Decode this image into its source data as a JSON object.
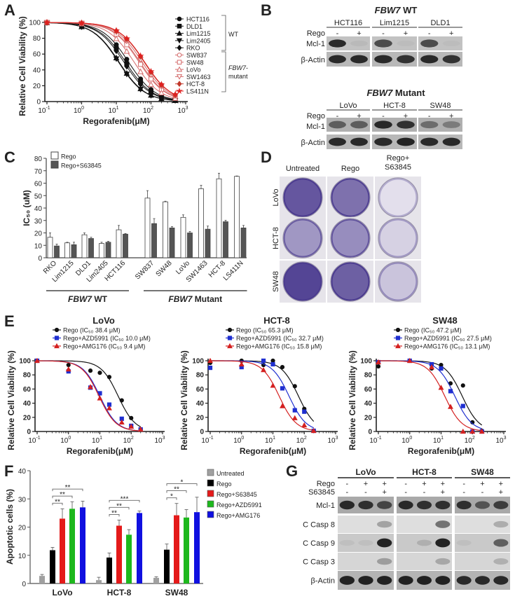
{
  "panel_labels": [
    "A",
    "B",
    "C",
    "D",
    "E",
    "F",
    "G"
  ],
  "chart_data": [
    {
      "id": "A",
      "type": "line",
      "xlabel": "Regorafenib(μM)",
      "ylabel": "Relative Cell Viability (%)",
      "x_scale": "log",
      "xlim": [
        0.1,
        1000
      ],
      "ylim": [
        0,
        100
      ],
      "x_ticks": [
        0.1,
        1,
        10,
        100,
        1000
      ],
      "y_ticks": [
        0,
        20,
        40,
        60,
        80,
        100
      ],
      "doses": [
        0.1,
        1,
        10,
        20,
        50,
        100,
        200,
        500
      ],
      "legend_position": "right",
      "groups": [
        {
          "name": "WT"
        },
        {
          "name_italic": "FBW7",
          "name_rest": "-",
          "name_line2": "mutant"
        }
      ],
      "series": [
        {
          "name": "HCT116",
          "group": 0,
          "ic50": 22.5,
          "color": "#111111",
          "marker": "circle",
          "filled": true
        },
        {
          "name": "DLD1",
          "group": 0,
          "ic50": 18.5,
          "color": "#111111",
          "marker": "square",
          "filled": true
        },
        {
          "name": "Lim1215",
          "group": 0,
          "ic50": 12,
          "color": "#111111",
          "marker": "triangle",
          "filled": true
        },
        {
          "name": "Lim2405",
          "group": 0,
          "ic50": 11.5,
          "color": "#111111",
          "marker": "triangle-down",
          "filled": true
        },
        {
          "name": "RKO",
          "group": 0,
          "ic50": 16.5,
          "color": "#111111",
          "marker": "diamond",
          "filled": true
        },
        {
          "name": "SW837",
          "group": 1,
          "ic50": 48,
          "color": "#d46a6a",
          "marker": "circle",
          "filled": false
        },
        {
          "name": "SW48",
          "group": 1,
          "ic50": 45,
          "color": "#d46a6a",
          "marker": "square",
          "filled": false
        },
        {
          "name": "LoVo",
          "group": 1,
          "ic50": 32.5,
          "color": "#d46a6a",
          "marker": "triangle",
          "filled": false
        },
        {
          "name": "SW1463",
          "group": 1,
          "ic50": 55.5,
          "color": "#d46a6a",
          "marker": "triangle-down",
          "filled": false
        },
        {
          "name": "HCT-8",
          "group": 1,
          "ic50": 63.5,
          "color": "#c0392b",
          "marker": "diamond",
          "filled": true
        },
        {
          "name": "LS411N",
          "group": 1,
          "ic50": 65.5,
          "color": "#e02020",
          "marker": "star",
          "filled": true
        }
      ]
    },
    {
      "id": "C",
      "type": "bar",
      "ylabel": "IC₅₀ (uM)",
      "ylim": [
        0,
        80
      ],
      "y_ticks": [
        0,
        10,
        20,
        30,
        40,
        50,
        60,
        70,
        80
      ],
      "categories": [
        "RKO",
        "Lim1215",
        "DLD1",
        "Lim2405",
        "HCT116",
        "SW837",
        "SW48",
        "LoVo",
        "SW1463",
        "HCT-8",
        "LS411N"
      ],
      "category_groups": [
        {
          "label_italic": "FBW7",
          "label_rest": " WT",
          "from": 0,
          "to": 4
        },
        {
          "label_italic": "FBW7",
          "label_rest": " Mutant",
          "from": 5,
          "to": 10
        }
      ],
      "legend_position": "top-left",
      "series": [
        {
          "name": "Rego",
          "color": "#ffffff",
          "values": [
            16.5,
            12,
            18.5,
            11.5,
            22.5,
            48,
            45,
            32.5,
            55.5,
            63.5,
            65.5
          ],
          "errors": [
            3.5,
            0.5,
            1.5,
            1,
            3.5,
            6,
            0.5,
            2,
            2.8,
            4.5,
            0.3
          ]
        },
        {
          "name": "Rego+S63845",
          "color": "#555555",
          "values": [
            9.5,
            10.5,
            15.5,
            12.5,
            19,
            27.5,
            24,
            20,
            23,
            29,
            24
          ],
          "errors": [
            1.5,
            2,
            1,
            0.7,
            0.5,
            4,
            1,
            1.2,
            2.5,
            1.2,
            2
          ]
        }
      ]
    },
    {
      "id": "E-LoVo",
      "type": "line",
      "title": "LoVo",
      "xlabel": "Regorafenib(μM)",
      "ylabel": "Relative Cell Viability (%)",
      "x_scale": "log",
      "xlim": [
        0.1,
        1000
      ],
      "ylim": [
        0,
        100
      ],
      "x_ticks": [
        0.1,
        1,
        10,
        100,
        1000
      ],
      "y_ticks": [
        0,
        20,
        40,
        60,
        80,
        100
      ],
      "x": [
        0.1,
        1,
        5,
        10,
        20,
        50,
        100,
        200
      ],
      "legend_position": "top",
      "series": [
        {
          "name": "Rego (IC₅₀ 38.4 μM)",
          "ic50": 38.4,
          "color": "#111111",
          "marker": "circle",
          "values": [
            100,
            94,
            86,
            83,
            77,
            44,
            19,
            3
          ]
        },
        {
          "name": "Rego+AZD5991 (IC₅₀ 10.0 μM)",
          "ic50": 10.0,
          "color": "#1f2fd0",
          "marker": "square",
          "values": [
            100,
            85,
            62,
            54,
            38,
            18,
            8,
            3
          ]
        },
        {
          "name": "Rego+AMG176 (IC₅₀ 9.4 μM)",
          "ic50": 9.4,
          "color": "#d42020",
          "marker": "triangle",
          "values": [
            100,
            88,
            63,
            47,
            33,
            13,
            7,
            3
          ]
        }
      ]
    },
    {
      "id": "E-HCT-8",
      "type": "line",
      "title": "HCT-8",
      "xlabel": "Regorafenib(μM)",
      "ylabel": "Relative Cell Viability (%)",
      "x_scale": "log",
      "xlim": [
        0.1,
        1000
      ],
      "ylim": [
        0,
        100
      ],
      "x_ticks": [
        0.1,
        1,
        10,
        100,
        1000
      ],
      "y_ticks": [
        0,
        20,
        40,
        60,
        80,
        100
      ],
      "x": [
        0.1,
        1,
        5,
        10,
        20,
        50,
        100,
        200
      ],
      "legend_position": "top",
      "series": [
        {
          "name": "Rego (IC₅₀ 65.3 μM)",
          "ic50": 65.3,
          "color": "#111111",
          "marker": "circle",
          "values": [
            97,
            100,
            94,
            100,
            91,
            64,
            32,
            1
          ]
        },
        {
          "name": "Rego+AZD5991 (IC₅₀ 32.7 μM)",
          "ic50": 32.7,
          "color": "#1f2fd0",
          "marker": "square",
          "values": [
            90,
            91,
            100,
            95,
            61,
            30,
            28,
            1
          ]
        },
        {
          "name": "Rego+AMG176 (IC₅₀ 15.8 μM)",
          "ic50": 15.8,
          "color": "#d42020",
          "marker": "triangle",
          "values": [
            100,
            95,
            87,
            65,
            36,
            19,
            9,
            1
          ]
        }
      ]
    },
    {
      "id": "E-SW48",
      "type": "line",
      "title": "SW48",
      "xlabel": "Regorafenib(μM)",
      "ylabel": "Relative Cell Viability (%)",
      "x_scale": "log",
      "xlim": [
        0.1,
        1000
      ],
      "ylim": [
        0,
        100
      ],
      "x_ticks": [
        0.1,
        1,
        10,
        100,
        1000
      ],
      "y_ticks": [
        0,
        20,
        40,
        60,
        80,
        100
      ],
      "x": [
        0.1,
        1,
        5,
        10,
        20,
        50,
        100,
        200
      ],
      "legend_position": "top",
      "series": [
        {
          "name": "Rego (IC₅₀ 47.2 μM)",
          "ic50": 47.2,
          "color": "#111111",
          "marker": "circle",
          "values": [
            92,
            100,
            89,
            94,
            68,
            65,
            13,
            1
          ]
        },
        {
          "name": "Rego+AZD5991 (IC₅₀ 27.5 μM)",
          "ic50": 27.5,
          "color": "#1f2fd0",
          "marker": "square",
          "values": [
            98,
            100,
            95,
            89,
            57,
            36,
            0,
            0
          ]
        },
        {
          "name": "Rego+AMG176 (IC₅₀ 13.1  μM)",
          "ic50": 13.1,
          "color": "#d42020",
          "marker": "triangle",
          "values": [
            98,
            100,
            91,
            62,
            35,
            0,
            0,
            0
          ]
        }
      ]
    },
    {
      "id": "F",
      "type": "bar",
      "ylabel": "Apoptotic cells (%)",
      "ylim": [
        0,
        40
      ],
      "y_ticks": [
        0,
        10,
        20,
        30,
        40
      ],
      "categories": [
        "LoVo",
        "HCT-8",
        "SW48"
      ],
      "legend_position": "right",
      "series": [
        {
          "name": "Untreated",
          "color": "#a0a0a0",
          "values": [
            2.7,
            1.2,
            2.0
          ],
          "errors": [
            0.5,
            1.0,
            0.4
          ]
        },
        {
          "name": "Rego",
          "color": "#000000",
          "values": [
            11.8,
            9.2,
            12.0
          ],
          "errors": [
            1.0,
            1.6,
            2.0
          ]
        },
        {
          "name": "Rego+S63845",
          "color": "#e41a1a",
          "values": [
            23.0,
            20.5,
            24.2
          ],
          "errors": [
            3.5,
            2.0,
            4.2
          ]
        },
        {
          "name": "Rego+AZD5991",
          "color": "#1db81d",
          "values": [
            26.5,
            17.3,
            23.4
          ],
          "errors": [
            2.5,
            1.8,
            2.8
          ]
        },
        {
          "name": "Rego+AMG176",
          "color": "#1010e0",
          "values": [
            27.0,
            25.0,
            25.3
          ],
          "errors": [
            2.2,
            0.7,
            5.3
          ]
        }
      ],
      "significance": [
        {
          "category": 0,
          "from": 1,
          "to": 2,
          "label": "**"
        },
        {
          "category": 0,
          "from": 1,
          "to": 3,
          "label": "**"
        },
        {
          "category": 0,
          "from": 1,
          "to": 4,
          "label": "**"
        },
        {
          "category": 1,
          "from": 1,
          "to": 2,
          "label": "**"
        },
        {
          "category": 1,
          "from": 1,
          "to": 3,
          "label": "**"
        },
        {
          "category": 1,
          "from": 1,
          "to": 4,
          "label": "***"
        },
        {
          "category": 2,
          "from": 1,
          "to": 2,
          "label": "*"
        },
        {
          "category": 2,
          "from": 1,
          "to": 3,
          "label": "**"
        },
        {
          "category": 2,
          "from": 1,
          "to": 4,
          "label": "*"
        }
      ]
    }
  ],
  "blot_b": {
    "sections": [
      {
        "title_italic": "FBW7",
        "title_rest": " WT",
        "treatment_label": "Rego",
        "lanes": [
          "-",
          "+"
        ],
        "cell_lines": [
          "HCT116",
          "Lim1215",
          "DLD1"
        ],
        "rows": [
          {
            "label": "Mcl-1",
            "intensity": [
              [
                0.9,
                0.05
              ],
              [
                0.7,
                0.03
              ],
              [
                0.7,
                0.03
              ]
            ]
          },
          {
            "label": "β-Actin",
            "intensity": [
              [
                0.9,
                0.9
              ],
              [
                0.9,
                0.85
              ],
              [
                0.9,
                0.85
              ]
            ]
          }
        ]
      },
      {
        "title_italic": "FBW7",
        "title_rest": " Mutant",
        "treatment_label": "Rego",
        "lanes": [
          "-",
          "+"
        ],
        "cell_lines": [
          "LoVo",
          "HCT-8",
          "SW48"
        ],
        "rows": [
          {
            "label": "Mcl-1",
            "intensity": [
              [
                0.55,
                0.55
              ],
              [
                0.9,
                0.85
              ],
              [
                0.45,
                0.35
              ]
            ]
          },
          {
            "label": "β-Actin",
            "intensity": [
              [
                0.9,
                0.9
              ],
              [
                0.9,
                0.95
              ],
              [
                0.9,
                0.9
              ]
            ]
          }
        ]
      }
    ]
  },
  "plates_d": {
    "columns": [
      "Untreated",
      "Rego",
      "Rego+\nS63845"
    ],
    "column_lines": [
      [
        "Untreated"
      ],
      [
        "Rego"
      ],
      [
        "Rego+",
        "S63845"
      ]
    ],
    "rows": [
      "LoVo",
      "HCT-8",
      "SW48"
    ],
    "stain_color": "#4b3b8f",
    "stain_intensity": [
      [
        0.85,
        0.7,
        0.1
      ],
      [
        0.5,
        0.55,
        0.18
      ],
      [
        0.95,
        0.8,
        0.25
      ]
    ]
  },
  "blot_g": {
    "cell_lines": [
      "LoVo",
      "HCT-8",
      "SW48"
    ],
    "treatments": [
      {
        "label": "Rego",
        "lanes": [
          "-",
          "+",
          "+"
        ]
      },
      {
        "label": "S63845",
        "lanes": [
          "-",
          "-",
          "+"
        ]
      }
    ],
    "rows": [
      {
        "label": "Mcl-1",
        "intensity": [
          [
            0.9,
            0.85,
            0.7
          ],
          [
            0.9,
            0.85,
            0.85
          ],
          [
            0.85,
            0.6,
            0.75
          ]
        ]
      },
      {
        "label": "C Casp 8",
        "intensity": [
          [
            0,
            0,
            0.3
          ],
          [
            0,
            0,
            0.55
          ],
          [
            0,
            0,
            0.25
          ]
        ]
      },
      {
        "label": "C Casp 9",
        "intensity": [
          [
            0.05,
            0.05,
            0.95
          ],
          [
            0,
            0.15,
            0.95
          ],
          [
            0.05,
            0,
            0.6
          ]
        ]
      },
      {
        "label": "C Casp 3",
        "intensity": [
          [
            0,
            0,
            0.3
          ],
          [
            0,
            0,
            0.25
          ],
          [
            0,
            0,
            0.2
          ]
        ]
      },
      {
        "label": "β-Actin",
        "intensity": [
          [
            0.95,
            0.95,
            0.95
          ],
          [
            0.95,
            0.95,
            0.95
          ],
          [
            0.9,
            0.9,
            0.9
          ]
        ]
      }
    ]
  }
}
